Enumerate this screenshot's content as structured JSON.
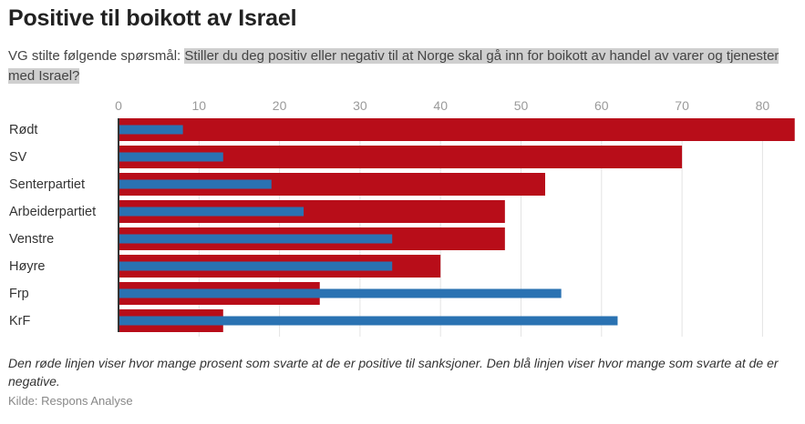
{
  "header": {
    "title": "Positive til boikott av Israel",
    "subtitle_prefix": "VG stilte følgende spørsmål: ",
    "subtitle_question": "Stiller du deg positiv eller negativ til at Norge skal gå inn for boikott av handel av varer og tjenester med Israel?"
  },
  "colors": {
    "positive": "#b80d19",
    "negative": "#2a72b2",
    "grid": "#e3e3e3",
    "axis": "#333333"
  },
  "chart_data": {
    "type": "bar",
    "orientation": "horizontal",
    "title": "Positive til boikott av Israel",
    "xlabel": "",
    "ylabel": "",
    "xlim": [
      0,
      84
    ],
    "xticks": [
      0,
      10,
      20,
      30,
      40,
      50,
      60,
      70,
      80
    ],
    "grid": true,
    "categories": [
      "Rødt",
      "SV",
      "Senterpartiet",
      "Arbeiderpartiet",
      "Venstre",
      "Høyre",
      "Frp",
      "KrF"
    ],
    "series": [
      {
        "name": "Positive",
        "color": "#b80d19",
        "values": [
          84,
          70,
          53,
          48,
          48,
          40,
          25,
          13
        ]
      },
      {
        "name": "Negative",
        "color": "#2a72b2",
        "values": [
          8,
          13,
          19,
          23,
          34,
          34,
          55,
          62
        ]
      }
    ]
  },
  "footer": {
    "note": "Den røde linjen viser hvor mange prosent som svarte at de er positive til sanksjoner. Den blå linjen viser hvor mange som svarte at de er negative.",
    "source": "Kilde: Respons Analyse"
  }
}
